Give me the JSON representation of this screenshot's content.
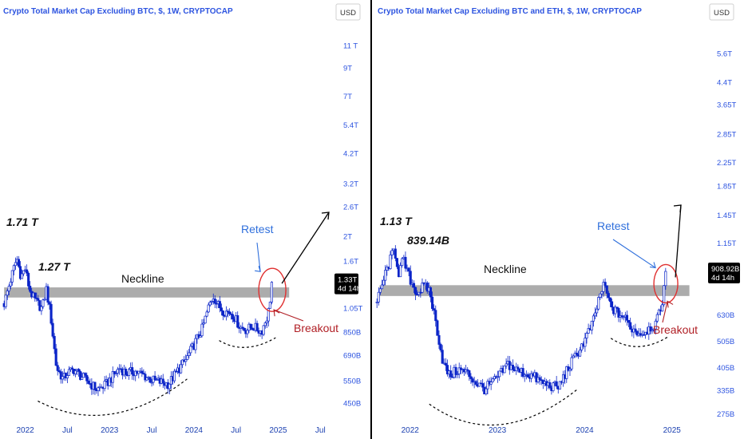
{
  "colors": {
    "candle": "#0b24c8",
    "axis_text": "#2d54e0",
    "title": "#2d54e0",
    "neckline_band": "#9e9e9e",
    "retest_text": "#2f6fdc",
    "breakout_text": "#b01e24",
    "circle": "#e03030",
    "badge_bg": "#000000",
    "divider": "#000000"
  },
  "chart_data": [
    {
      "type": "candlestick",
      "title": "Crypto Total Market Cap Excluding BTC, $, 1W, CRYPTOCAP",
      "currency": "USD",
      "scale": "log",
      "ylim": [
        400,
        13000
      ],
      "yticks": [
        "11 T",
        "9T",
        "7T",
        "5.4T",
        "4.2T",
        "3.2T",
        "2.6T",
        "2T",
        "1.6T",
        "1.05T",
        "850B",
        "690B",
        "550B",
        "450B"
      ],
      "ytick_values": [
        11000,
        9000,
        7000,
        5400,
        4200,
        3200,
        2600,
        2000,
        1600,
        1050,
        850,
        690,
        550,
        450
      ],
      "xticks": [
        "2022",
        "Jul",
        "2023",
        "Jul",
        "2024",
        "Jul",
        "2025",
        "Jul"
      ],
      "xtick_positions": [
        2022.0,
        2022.5,
        2023.0,
        2023.5,
        2024.0,
        2024.5,
        2025.0,
        2025.5
      ],
      "xlim": [
        2021.72,
        2025.62
      ],
      "last_value_label": "1.33T",
      "countdown_label": "4d 14h",
      "last_value": 1330,
      "neckline": {
        "label": "Neckline",
        "range": [
          1160,
          1270
        ],
        "x_start": 2021.75,
        "x_end": 2025.13
      },
      "annotations": {
        "ath": "1.71 T",
        "level": "1.27 T",
        "retest": "Retest",
        "breakout": "Breakout"
      },
      "ath_value": 1710,
      "level_value": 1270,
      "anchors": [
        [
          2021.75,
          1100
        ],
        [
          2021.85,
          1450
        ],
        [
          2021.9,
          1650
        ],
        [
          2021.95,
          1400
        ],
        [
          2022.0,
          1500
        ],
        [
          2022.05,
          1250
        ],
        [
          2022.1,
          1150
        ],
        [
          2022.2,
          1050
        ],
        [
          2022.25,
          1250
        ],
        [
          2022.3,
          1000
        ],
        [
          2022.37,
          620
        ],
        [
          2022.45,
          560
        ],
        [
          2022.5,
          590
        ],
        [
          2022.58,
          610
        ],
        [
          2022.65,
          580
        ],
        [
          2022.75,
          545
        ],
        [
          2022.85,
          510
        ],
        [
          2022.95,
          530
        ],
        [
          2023.05,
          580
        ],
        [
          2023.12,
          620
        ],
        [
          2023.2,
          590
        ],
        [
          2023.3,
          600
        ],
        [
          2023.4,
          580
        ],
        [
          2023.5,
          555
        ],
        [
          2023.6,
          545
        ],
        [
          2023.7,
          535
        ],
        [
          2023.8,
          600
        ],
        [
          2023.9,
          660
        ],
        [
          2024.0,
          760
        ],
        [
          2024.1,
          880
        ],
        [
          2024.18,
          1080
        ],
        [
          2024.23,
          1180
        ],
        [
          2024.28,
          1090
        ],
        [
          2024.35,
          1030
        ],
        [
          2024.45,
          1010
        ],
        [
          2024.55,
          890
        ],
        [
          2024.62,
          870
        ],
        [
          2024.7,
          895
        ],
        [
          2024.8,
          855
        ],
        [
          2024.88,
          1000
        ],
        [
          2024.93,
          1330
        ]
      ]
    },
    {
      "type": "candlestick",
      "title": "Crypto Total Market Cap Excluding BTC and ETH, $, 1W, CRYPTOCAP",
      "currency": "USD",
      "scale": "log",
      "ylim": [
        270,
        7000
      ],
      "yticks": [
        "5.6T",
        "4.4T",
        "3.65T",
        "2.85T",
        "2.25T",
        "1.85T",
        "1.45T",
        "1.15T",
        "630B",
        "505B",
        "405B",
        "335B",
        "275B"
      ],
      "ytick_values": [
        5600,
        4400,
        3650,
        2850,
        2250,
        1850,
        1450,
        1150,
        630,
        505,
        405,
        335,
        275
      ],
      "xticks": [
        "2022",
        "2023",
        "2024",
        "2025"
      ],
      "xtick_positions": [
        2022.0,
        2023.0,
        2024.0,
        2025.0
      ],
      "xlim": [
        2021.6,
        2025.35
      ],
      "last_value_label": "908.92B",
      "countdown_label": "4d 14h",
      "last_value": 909,
      "neckline": {
        "label": "Neckline",
        "range": [
          740,
          810
        ],
        "x_start": 2021.65,
        "x_end": 2025.2
      },
      "annotations": {
        "ath": "1.13 T",
        "level": "839.14B",
        "retest": "Retest",
        "breakout": "Breakout"
      },
      "ath_value": 1130,
      "level_value": 839.14,
      "anchors": [
        [
          2021.62,
          700
        ],
        [
          2021.72,
          900
        ],
        [
          2021.82,
          1100
        ],
        [
          2021.87,
          900
        ],
        [
          2021.92,
          1000
        ],
        [
          2022.0,
          850
        ],
        [
          2022.08,
          760
        ],
        [
          2022.15,
          800
        ],
        [
          2022.22,
          780
        ],
        [
          2022.3,
          580
        ],
        [
          2022.38,
          420
        ],
        [
          2022.45,
          380
        ],
        [
          2022.55,
          400
        ],
        [
          2022.65,
          390
        ],
        [
          2022.75,
          360
        ],
        [
          2022.85,
          340
        ],
        [
          2022.95,
          360
        ],
        [
          2023.05,
          390
        ],
        [
          2023.12,
          420
        ],
        [
          2023.2,
          400
        ],
        [
          2023.3,
          390
        ],
        [
          2023.4,
          380
        ],
        [
          2023.5,
          360
        ],
        [
          2023.6,
          350
        ],
        [
          2023.7,
          345
        ],
        [
          2023.8,
          400
        ],
        [
          2023.9,
          450
        ],
        [
          2024.0,
          510
        ],
        [
          2024.1,
          600
        ],
        [
          2024.18,
          760
        ],
        [
          2024.23,
          810
        ],
        [
          2024.28,
          700
        ],
        [
          2024.35,
          650
        ],
        [
          2024.45,
          620
        ],
        [
          2024.55,
          560
        ],
        [
          2024.65,
          540
        ],
        [
          2024.75,
          570
        ],
        [
          2024.82,
          590
        ],
        [
          2024.88,
          680
        ],
        [
          2024.93,
          909
        ]
      ]
    }
  ]
}
